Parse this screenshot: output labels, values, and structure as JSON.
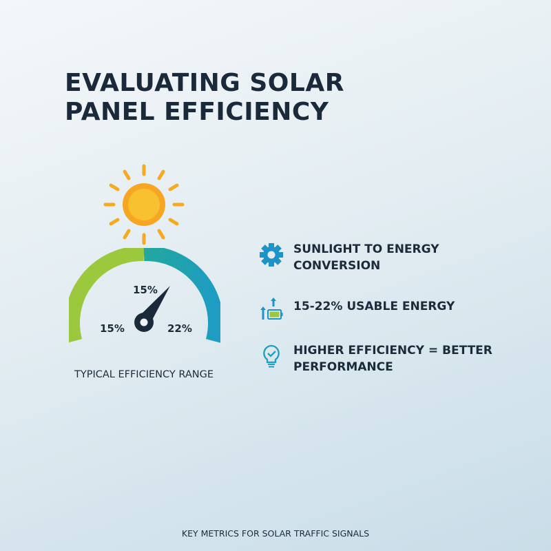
{
  "title_line1": "EVALUATING SOLAR",
  "title_line2": "PANEL EFFICIENCY",
  "gauge": {
    "min_label": "15%",
    "max_label": "22%",
    "needle_label": "15%",
    "caption": "TYPICAL EFFICIENCY RANGE",
    "colors": {
      "low": "#9bc83c",
      "mid": "#22a89c",
      "high": "#1e9cc4"
    }
  },
  "items": [
    {
      "icon": "gear-icon",
      "line1": "SUNLIGHT TO ENERGY",
      "line2": "CONVERSION"
    },
    {
      "icon": "battery-arrows-icon",
      "line1": "15-22% USABLE ENERGY"
    },
    {
      "icon": "lightbulb-check-icon",
      "line1": "HIGHER EFFICIENCY = BETTER",
      "line2": "PERFORMANCE"
    }
  ],
  "footer": "KEY METRICS FOR SOLAR TRAFFIC SIGNALS"
}
